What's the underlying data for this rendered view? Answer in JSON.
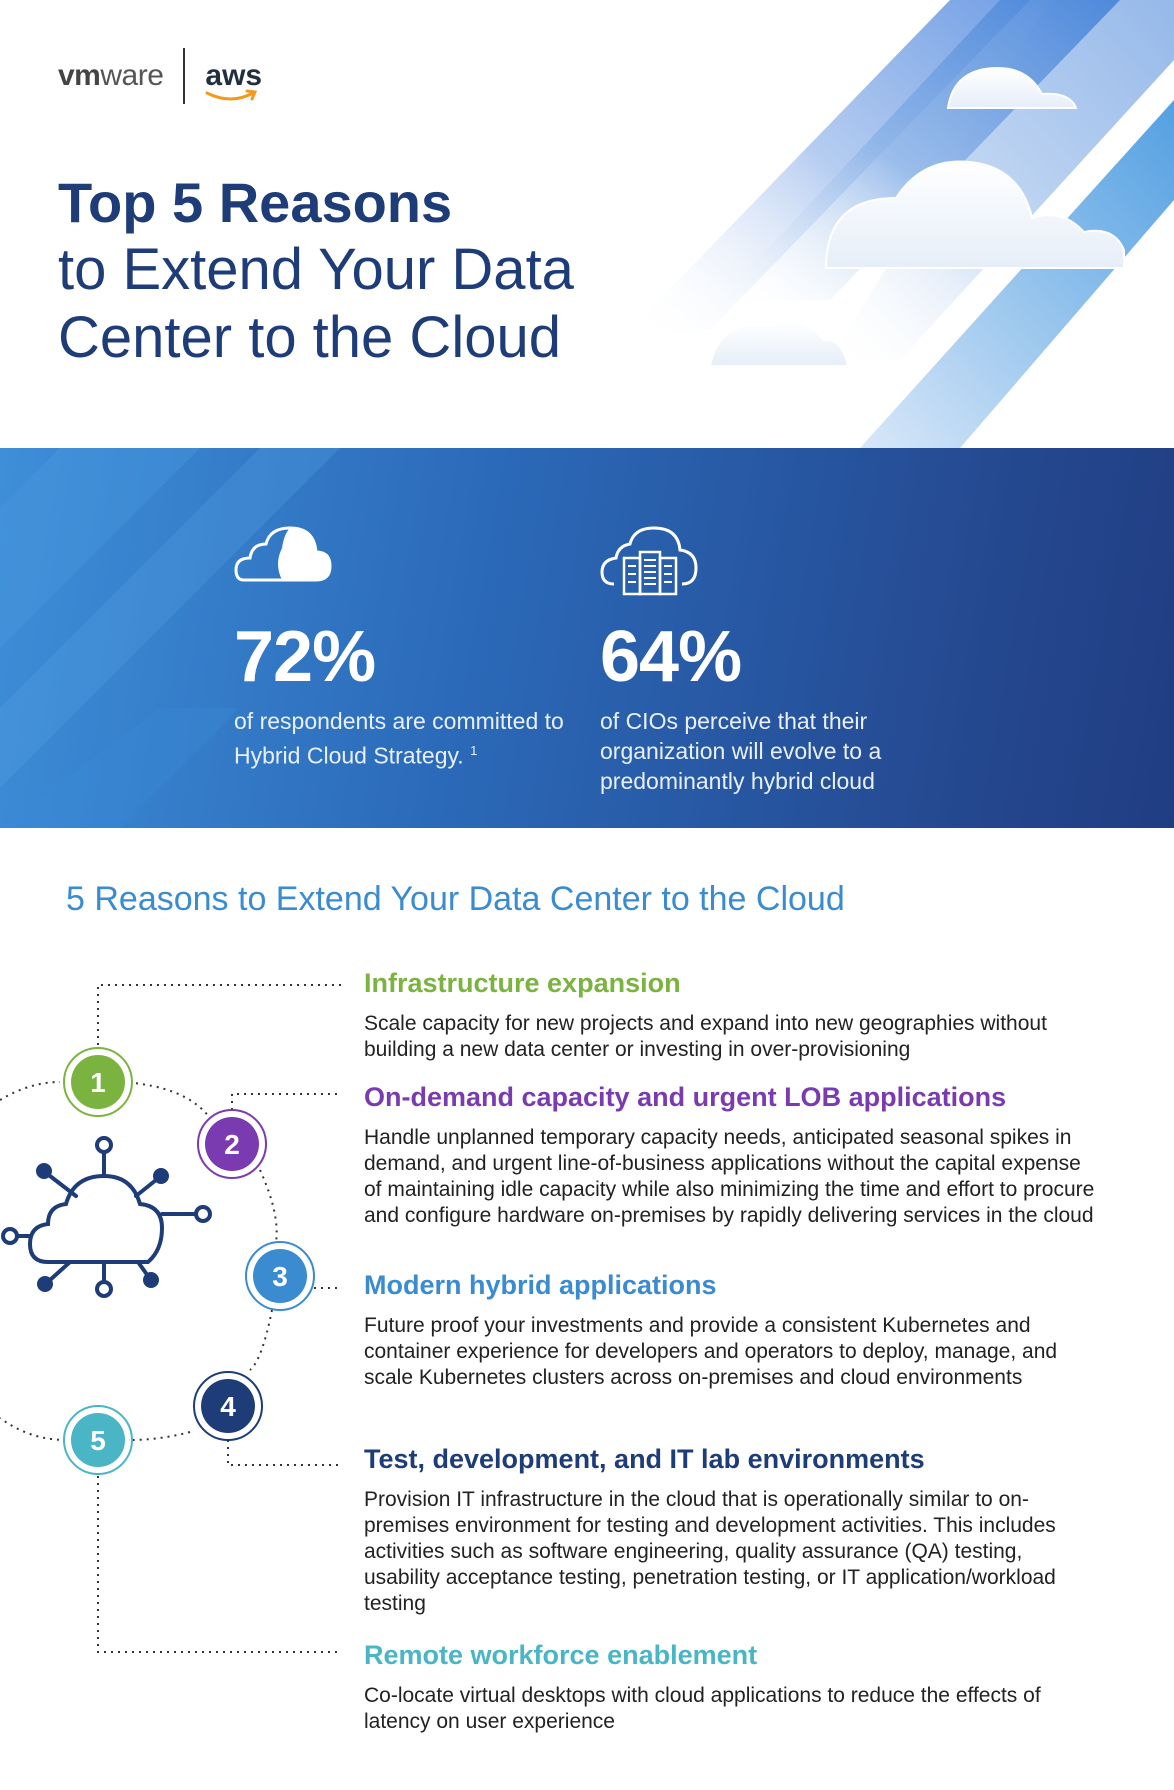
{
  "header": {
    "brand_vm": "vm",
    "brand_ware": "ware",
    "brand_aws": "aws",
    "title_line1": "Top 5 Reasons",
    "title_line2": "to Extend Your Data",
    "title_line3": "Center to the Cloud"
  },
  "stats": [
    {
      "value": "72%",
      "description": "of respondents are committed to Hybrid Cloud Strategy.",
      "footnote": "1",
      "icon": "cloud-icon"
    },
    {
      "value": "64%",
      "description": "of CIOs perceive that their organization will evolve to a predominantly hybrid cloud",
      "icon": "cloud-server-icon"
    }
  ],
  "reasons_section": {
    "title": "5 Reasons to Extend Your Data Center to the Cloud",
    "center_icon": "cloud-network-icon",
    "items": [
      {
        "number": "1",
        "color": "#7ab340",
        "title": "Infrastructure expansion",
        "body": "Scale capacity for new projects and expand into new geographies without building a new data center or investing in over-provisioning"
      },
      {
        "number": "2",
        "color": "#7a3bb0",
        "title": "On-demand capacity and urgent LOB applications",
        "body": "Handle unplanned temporary capacity needs, anticipated seasonal spikes in demand, and urgent line-of-business applications without the capital expense of maintaining idle capacity while also minimizing the time and effort to procure and configure hardware on-premises by rapidly delivering services in the cloud"
      },
      {
        "number": "3",
        "color": "#3b8bd0",
        "title": "Modern hybrid applications",
        "body": "Future proof your investments and provide a consistent Kubernetes and container experience for developers and operators to deploy, manage, and scale Kubernetes clusters across on-premises and cloud environments"
      },
      {
        "number": "4",
        "color": "#1d3c78",
        "title": "Test, development, and IT lab environments",
        "body": "Provision IT infrastructure in the cloud that is operationally similar to on-premises environment for testing and development activities. This includes activities such as software engineering, quality assurance (QA) testing, usability acceptance testing, penetration testing, or IT application/workload testing"
      },
      {
        "number": "5",
        "color": "#4ab5c5",
        "title": "Remote workforce enablement",
        "body": "Co-locate virtual desktops with cloud applications to reduce the effects of latency on user experience"
      }
    ]
  }
}
